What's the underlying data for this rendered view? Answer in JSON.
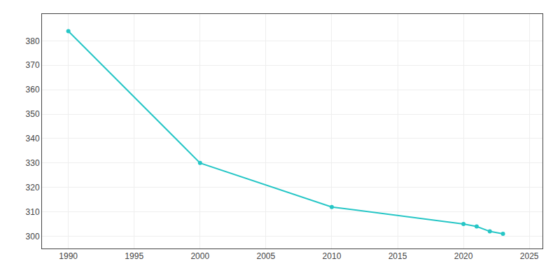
{
  "chart_data": {
    "type": "line",
    "x": [
      1990,
      2000,
      2010,
      2020,
      2021,
      2022,
      2023
    ],
    "values": [
      384,
      330,
      312,
      305,
      304,
      302,
      301
    ],
    "color": "#26c6c6",
    "marker": "circle",
    "line_style": "solid",
    "xlim": [
      1988,
      2026
    ],
    "ylim": [
      295,
      391
    ],
    "xticks": [
      1990,
      1995,
      2000,
      2005,
      2010,
      2015,
      2020,
      2025
    ],
    "yticks": [
      300,
      310,
      320,
      330,
      340,
      350,
      360,
      370,
      380
    ],
    "grid": true
  }
}
